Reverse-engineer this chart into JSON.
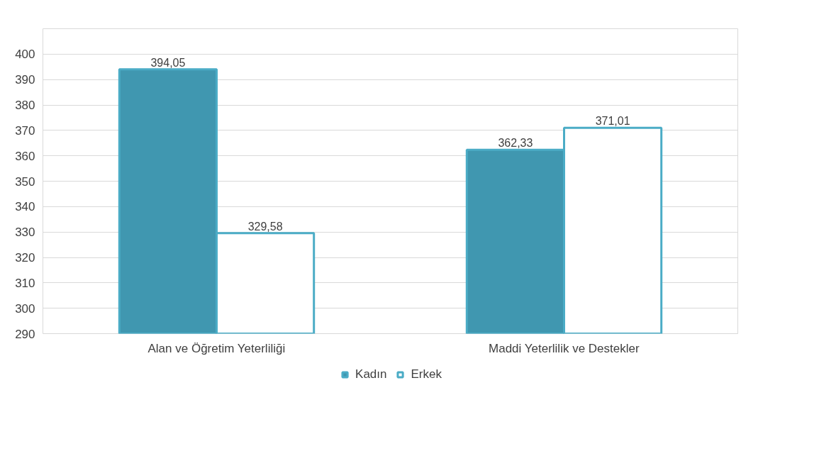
{
  "chart_data": {
    "type": "bar",
    "categories": [
      "Alan ve Öğretim Yeterliliği",
      "Maddi Yeterlilik ve Destekler"
    ],
    "series": [
      {
        "name": "Kadın",
        "color": "#4097b0",
        "values": [
          394.05,
          362.33
        ],
        "value_labels": [
          "394,05",
          "362,33"
        ]
      },
      {
        "name": "Erkek",
        "color": "#ffffff",
        "values": [
          329.58,
          371.01
        ],
        "value_labels": [
          "329,58",
          "371,01"
        ]
      }
    ],
    "ylim": [
      290,
      410
    ],
    "yticks": [
      290,
      300,
      310,
      320,
      330,
      340,
      350,
      360,
      370,
      380,
      390,
      400
    ],
    "grid": "y",
    "legend": "bottom"
  }
}
